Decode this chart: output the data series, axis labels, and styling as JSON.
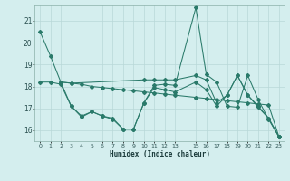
{
  "xlabel": "Humidex (Indice chaleur)",
  "bg_color": "#d4eeee",
  "grid_color": "#b8d8d8",
  "line_color": "#2a7a6a",
  "xlim": [
    -0.5,
    23.5
  ],
  "ylim": [
    15.5,
    21.7
  ],
  "yticks": [
    16,
    17,
    18,
    19,
    20,
    21
  ],
  "xticks": [
    0,
    1,
    2,
    3,
    4,
    5,
    6,
    7,
    8,
    9,
    10,
    11,
    12,
    13,
    15,
    16,
    17,
    18,
    19,
    20,
    21,
    22,
    23
  ],
  "series1_x": [
    0,
    1,
    2,
    3,
    4,
    5,
    6,
    7,
    8,
    9,
    10,
    11,
    12,
    13,
    15,
    16,
    17,
    18,
    19,
    20,
    21,
    22,
    23
  ],
  "series1_y": [
    20.5,
    19.4,
    18.2,
    17.1,
    16.6,
    16.85,
    16.65,
    16.5,
    16.05,
    16.05,
    17.25,
    18.05,
    18.1,
    18.05,
    21.6,
    18.55,
    18.2,
    17.1,
    17.05,
    18.5,
    17.4,
    16.5,
    15.7
  ],
  "series2_x": [
    2,
    3,
    4,
    5,
    6,
    7,
    8,
    9,
    10,
    11,
    12,
    13,
    15,
    16,
    17,
    18,
    19,
    20,
    21,
    22,
    23
  ],
  "series2_y": [
    18.2,
    18.15,
    18.1,
    18.0,
    17.95,
    17.9,
    17.85,
    17.8,
    17.75,
    17.7,
    17.65,
    17.6,
    17.5,
    17.45,
    17.4,
    17.35,
    17.3,
    17.25,
    17.2,
    17.15,
    15.7
  ],
  "series3_x": [
    2,
    3,
    10,
    11,
    12,
    13,
    15,
    16,
    17,
    18,
    19,
    20,
    21,
    22,
    23
  ],
  "series3_y": [
    18.2,
    18.15,
    18.3,
    18.3,
    18.3,
    18.3,
    18.5,
    18.3,
    17.25,
    17.6,
    18.5,
    17.6,
    17.1,
    16.55,
    15.7
  ],
  "series4_x": [
    0,
    1,
    2,
    3,
    4,
    5,
    6,
    7,
    8,
    9,
    10,
    11,
    12,
    13,
    15,
    16,
    17,
    18,
    19,
    20,
    21,
    22,
    23
  ],
  "series4_y": [
    18.2,
    18.2,
    18.1,
    17.1,
    16.65,
    16.85,
    16.65,
    16.55,
    16.05,
    16.05,
    17.25,
    17.95,
    17.85,
    17.75,
    18.2,
    17.85,
    17.1,
    17.6,
    18.5,
    17.6,
    17.05,
    16.55,
    15.7
  ]
}
